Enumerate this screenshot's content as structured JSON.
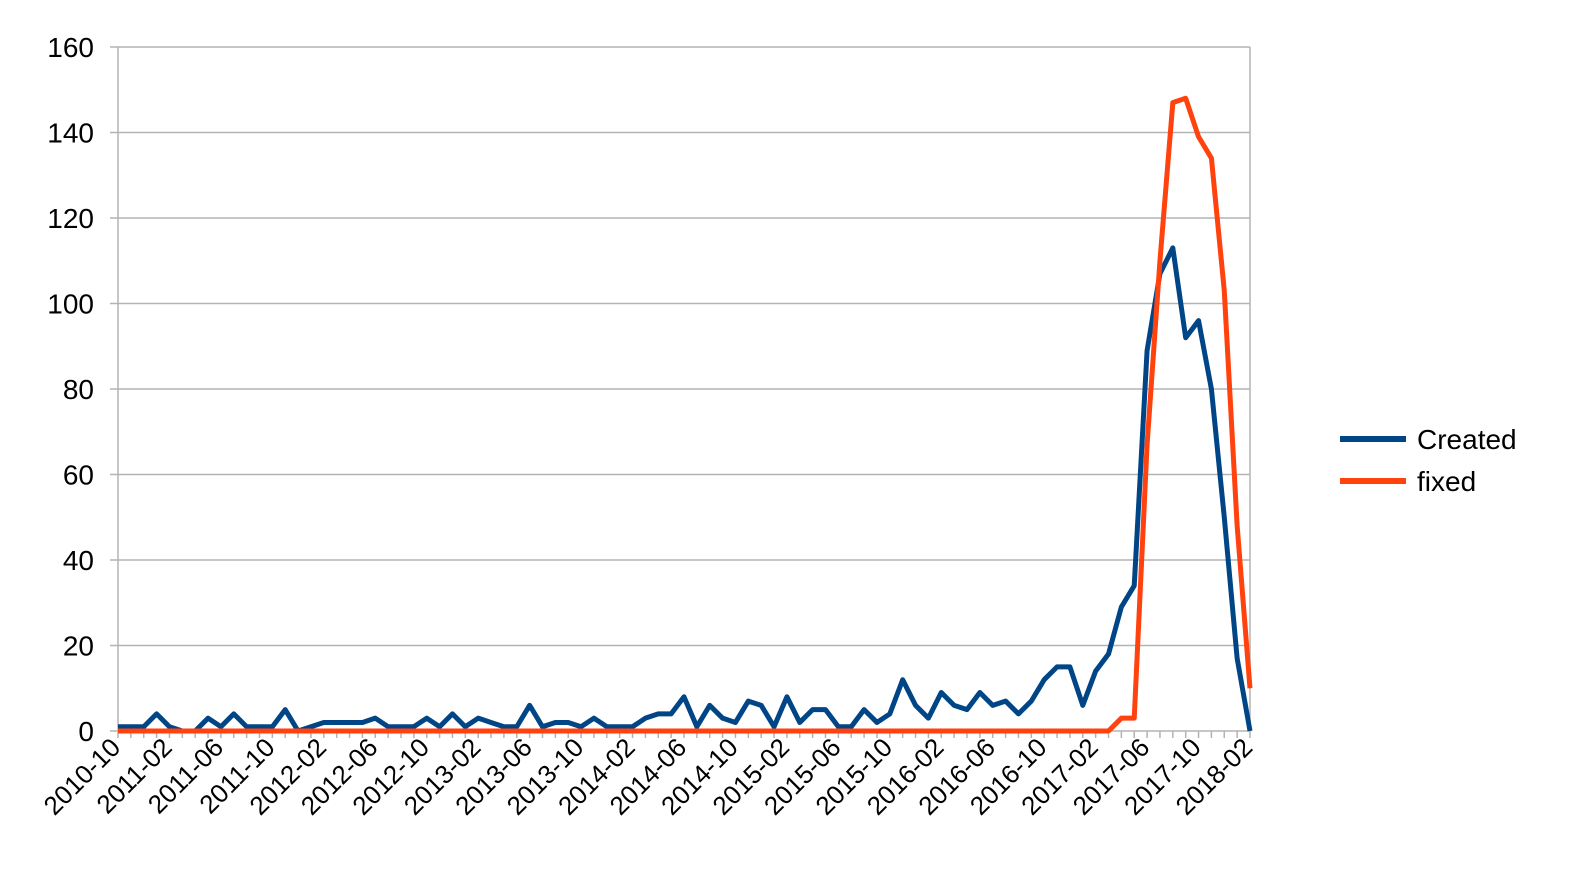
{
  "chart_data": {
    "type": "line",
    "title": "",
    "xlabel": "",
    "ylabel": "",
    "ylim": [
      0,
      160
    ],
    "yticks": [
      0,
      20,
      40,
      60,
      80,
      100,
      120,
      140,
      160
    ],
    "grid": true,
    "legend_position": "right",
    "x_tick_labels": [
      "2010-10",
      "2011-02",
      "2011-06",
      "2011-10",
      "2012-02",
      "2012-06",
      "2012-10",
      "2013-02",
      "2013-06",
      "2013-10",
      "2014-02",
      "2014-06",
      "2014-10",
      "2015-02",
      "2015-06",
      "2015-10",
      "2016-02",
      "2016-06",
      "2016-10",
      "2017-02",
      "2017-06",
      "2017-10",
      "2018-02"
    ],
    "x": [
      "2010-10",
      "2010-11",
      "2010-12",
      "2011-01",
      "2011-02",
      "2011-03",
      "2011-04",
      "2011-05",
      "2011-06",
      "2011-07",
      "2011-08",
      "2011-09",
      "2011-10",
      "2011-11",
      "2011-12",
      "2012-01",
      "2012-02",
      "2012-03",
      "2012-04",
      "2012-05",
      "2012-06",
      "2012-07",
      "2012-08",
      "2012-09",
      "2012-10",
      "2012-11",
      "2012-12",
      "2013-01",
      "2013-02",
      "2013-03",
      "2013-04",
      "2013-05",
      "2013-06",
      "2013-07",
      "2013-08",
      "2013-09",
      "2013-10",
      "2013-11",
      "2013-12",
      "2014-01",
      "2014-02",
      "2014-03",
      "2014-04",
      "2014-05",
      "2014-06",
      "2014-07",
      "2014-08",
      "2014-09",
      "2014-10",
      "2014-11",
      "2014-12",
      "2015-01",
      "2015-02",
      "2015-03",
      "2015-04",
      "2015-05",
      "2015-06",
      "2015-07",
      "2015-08",
      "2015-09",
      "2015-10",
      "2015-11",
      "2015-12",
      "2016-01",
      "2016-02",
      "2016-03",
      "2016-04",
      "2016-05",
      "2016-06",
      "2016-07",
      "2016-08",
      "2016-09",
      "2016-10",
      "2016-11",
      "2016-12",
      "2017-01",
      "2017-02",
      "2017-03",
      "2017-04",
      "2017-05",
      "2017-06",
      "2017-07",
      "2017-08",
      "2017-09",
      "2017-10",
      "2017-11",
      "2017-12",
      "2018-01",
      "2018-02"
    ],
    "series": [
      {
        "name": "Created",
        "color": "#004586",
        "values": [
          1,
          1,
          1,
          4,
          1,
          0,
          0,
          3,
          1,
          4,
          1,
          1,
          1,
          5,
          0,
          1,
          2,
          2,
          2,
          2,
          3,
          1,
          1,
          1,
          3,
          1,
          4,
          1,
          3,
          2,
          1,
          1,
          6,
          1,
          2,
          2,
          1,
          3,
          1,
          1,
          1,
          3,
          4,
          4,
          8,
          1,
          6,
          3,
          2,
          7,
          6,
          1,
          8,
          2,
          5,
          5,
          1,
          1,
          5,
          2,
          4,
          12,
          6,
          3,
          9,
          6,
          5,
          9,
          6,
          7,
          4,
          7,
          12,
          15,
          15,
          6,
          14,
          18,
          29,
          34,
          89,
          107,
          113,
          92,
          96,
          80,
          50,
          17,
          0
        ]
      },
      {
        "name": "fixed",
        "color": "#ff420e",
        "values": [
          0,
          0,
          0,
          0,
          0,
          0,
          0,
          0,
          0,
          0,
          0,
          0,
          0,
          0,
          0,
          0,
          0,
          0,
          0,
          0,
          0,
          0,
          0,
          0,
          0,
          0,
          0,
          0,
          0,
          0,
          0,
          0,
          0,
          0,
          0,
          0,
          0,
          0,
          0,
          0,
          0,
          0,
          0,
          0,
          0,
          0,
          0,
          0,
          0,
          0,
          0,
          0,
          0,
          0,
          0,
          0,
          0,
          0,
          0,
          0,
          0,
          0,
          0,
          0,
          0,
          0,
          0,
          0,
          0,
          0,
          0,
          0,
          0,
          0,
          0,
          0,
          0,
          0,
          3,
          3,
          67,
          110,
          147,
          148,
          139,
          134,
          103,
          48,
          10
        ]
      }
    ]
  }
}
